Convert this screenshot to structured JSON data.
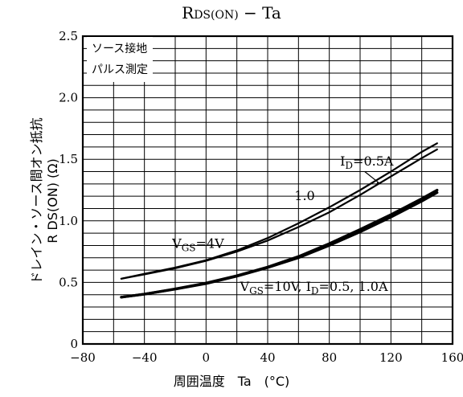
{
  "chart_data": {
    "type": "line",
    "title": "R_DS(ON) − Ta",
    "title_main": "R",
    "title_sub": "DS(ON)",
    "title_tail": " − Ta",
    "xlabel": "周囲温度　Ta　(°C)",
    "ylabel_line1": "ドレイン・ソース間オン抵抗",
    "ylabel_line2": "R DS(ON)  (Ω)",
    "xlim": [
      -80,
      160
    ],
    "ylim": [
      0,
      2.5
    ],
    "x_ticks": [
      -80,
      -40,
      0,
      40,
      80,
      120,
      160
    ],
    "y_ticks": [
      0,
      0.5,
      1.0,
      1.5,
      2.0,
      2.5
    ],
    "grid": true,
    "notes": [
      "ソース接地",
      "パルス測定"
    ],
    "series": [
      {
        "label": "ID=0.5A",
        "x": [
          -55,
          -40,
          -20,
          0,
          20,
          40,
          60,
          80,
          100,
          120,
          140,
          150
        ],
        "values": [
          0.53,
          0.57,
          0.62,
          0.68,
          0.76,
          0.86,
          0.98,
          1.11,
          1.25,
          1.4,
          1.56,
          1.63
        ]
      },
      {
        "label": "1.0",
        "x": [
          -55,
          -40,
          -20,
          0,
          20,
          40,
          60,
          80,
          100,
          120,
          140,
          150
        ],
        "values": [
          0.53,
          0.565,
          0.615,
          0.675,
          0.75,
          0.84,
          0.95,
          1.07,
          1.21,
          1.36,
          1.51,
          1.58
        ]
      },
      {
        "label": "VGS=10V, ID=0.5",
        "x": [
          -55,
          -40,
          -20,
          0,
          20,
          40,
          60,
          80,
          100,
          120,
          140,
          150
        ],
        "values": [
          0.38,
          0.405,
          0.445,
          0.49,
          0.55,
          0.62,
          0.7,
          0.8,
          0.91,
          1.03,
          1.16,
          1.23
        ]
      },
      {
        "label": "VGS=10V, ID=1.0A",
        "x": [
          -55,
          -40,
          -20,
          0,
          20,
          40,
          60,
          80,
          100,
          120,
          140,
          150
        ],
        "values": [
          0.38,
          0.405,
          0.447,
          0.495,
          0.555,
          0.625,
          0.71,
          0.815,
          0.93,
          1.05,
          1.18,
          1.25
        ]
      }
    ],
    "annotations": [
      {
        "text_main": "I",
        "text_sub": "D",
        "text_tail": "=0.5A"
      },
      {
        "text_main": "",
        "text_sub": "",
        "text_tail": "1.0"
      },
      {
        "text_main": "V",
        "text_sub": "GS",
        "text_tail": "=4V"
      },
      {
        "text_main": "V",
        "text_sub": "GS",
        "text_tail": "=10V,  I",
        "text_sub2": "D",
        "text_tail2": "=0.5,  1.0A"
      }
    ]
  }
}
